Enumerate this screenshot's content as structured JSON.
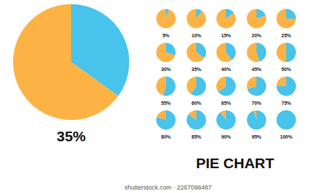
{
  "header": {
    "title": "PIE CHART"
  },
  "footer": {
    "text": "shutterstock.com · 2267098487"
  },
  "chart_data": [
    {
      "type": "pie",
      "title": "35%",
      "values": [
        35,
        65
      ],
      "colors": [
        "#47c3ec",
        "#fdb244"
      ]
    },
    {
      "type": "pie",
      "title": "5%",
      "values": [
        5,
        95
      ],
      "colors": [
        "#47c3ec",
        "#fdb244"
      ]
    },
    {
      "type": "pie",
      "title": "10%",
      "values": [
        10,
        90
      ],
      "colors": [
        "#47c3ec",
        "#fdb244"
      ]
    },
    {
      "type": "pie",
      "title": "15%",
      "values": [
        15,
        85
      ],
      "colors": [
        "#47c3ec",
        "#fdb244"
      ]
    },
    {
      "type": "pie",
      "title": "20%",
      "values": [
        20,
        80
      ],
      "colors": [
        "#47c3ec",
        "#fdb244"
      ]
    },
    {
      "type": "pie",
      "title": "25%",
      "values": [
        25,
        75
      ],
      "colors": [
        "#47c3ec",
        "#fdb244"
      ]
    },
    {
      "type": "pie",
      "title": "30%",
      "values": [
        30,
        70
      ],
      "colors": [
        "#47c3ec",
        "#fdb244"
      ]
    },
    {
      "type": "pie",
      "title": "35%",
      "values": [
        35,
        65
      ],
      "colors": [
        "#47c3ec",
        "#fdb244"
      ]
    },
    {
      "type": "pie",
      "title": "40%",
      "values": [
        40,
        60
      ],
      "colors": [
        "#47c3ec",
        "#fdb244"
      ]
    },
    {
      "type": "pie",
      "title": "45%",
      "values": [
        45,
        55
      ],
      "colors": [
        "#47c3ec",
        "#fdb244"
      ]
    },
    {
      "type": "pie",
      "title": "50%",
      "values": [
        50,
        50
      ],
      "colors": [
        "#47c3ec",
        "#fdb244"
      ]
    },
    {
      "type": "pie",
      "title": "55%",
      "values": [
        55,
        45
      ],
      "colors": [
        "#47c3ec",
        "#fdb244"
      ]
    },
    {
      "type": "pie",
      "title": "60%",
      "values": [
        60,
        40
      ],
      "colors": [
        "#47c3ec",
        "#fdb244"
      ]
    },
    {
      "type": "pie",
      "title": "65%",
      "values": [
        65,
        35
      ],
      "colors": [
        "#47c3ec",
        "#fdb244"
      ]
    },
    {
      "type": "pie",
      "title": "70%",
      "values": [
        70,
        30
      ],
      "colors": [
        "#47c3ec",
        "#fdb244"
      ]
    },
    {
      "type": "pie",
      "title": "75%",
      "values": [
        75,
        25
      ],
      "colors": [
        "#47c3ec",
        "#fdb244"
      ]
    },
    {
      "type": "pie",
      "title": "80%",
      "values": [
        80,
        20
      ],
      "colors": [
        "#47c3ec",
        "#fdb244"
      ]
    },
    {
      "type": "pie",
      "title": "85%",
      "values": [
        85,
        15
      ],
      "colors": [
        "#47c3ec",
        "#fdb244"
      ]
    },
    {
      "type": "pie",
      "title": "90%",
      "values": [
        90,
        10
      ],
      "colors": [
        "#47c3ec",
        "#fdb244"
      ]
    },
    {
      "type": "pie",
      "title": "95%",
      "values": [
        95,
        5
      ],
      "colors": [
        "#47c3ec",
        "#fdb244"
      ]
    },
    {
      "type": "pie",
      "title": "100%",
      "values": [
        100,
        0
      ],
      "colors": [
        "#47c3ec",
        "#fdb244"
      ]
    }
  ]
}
